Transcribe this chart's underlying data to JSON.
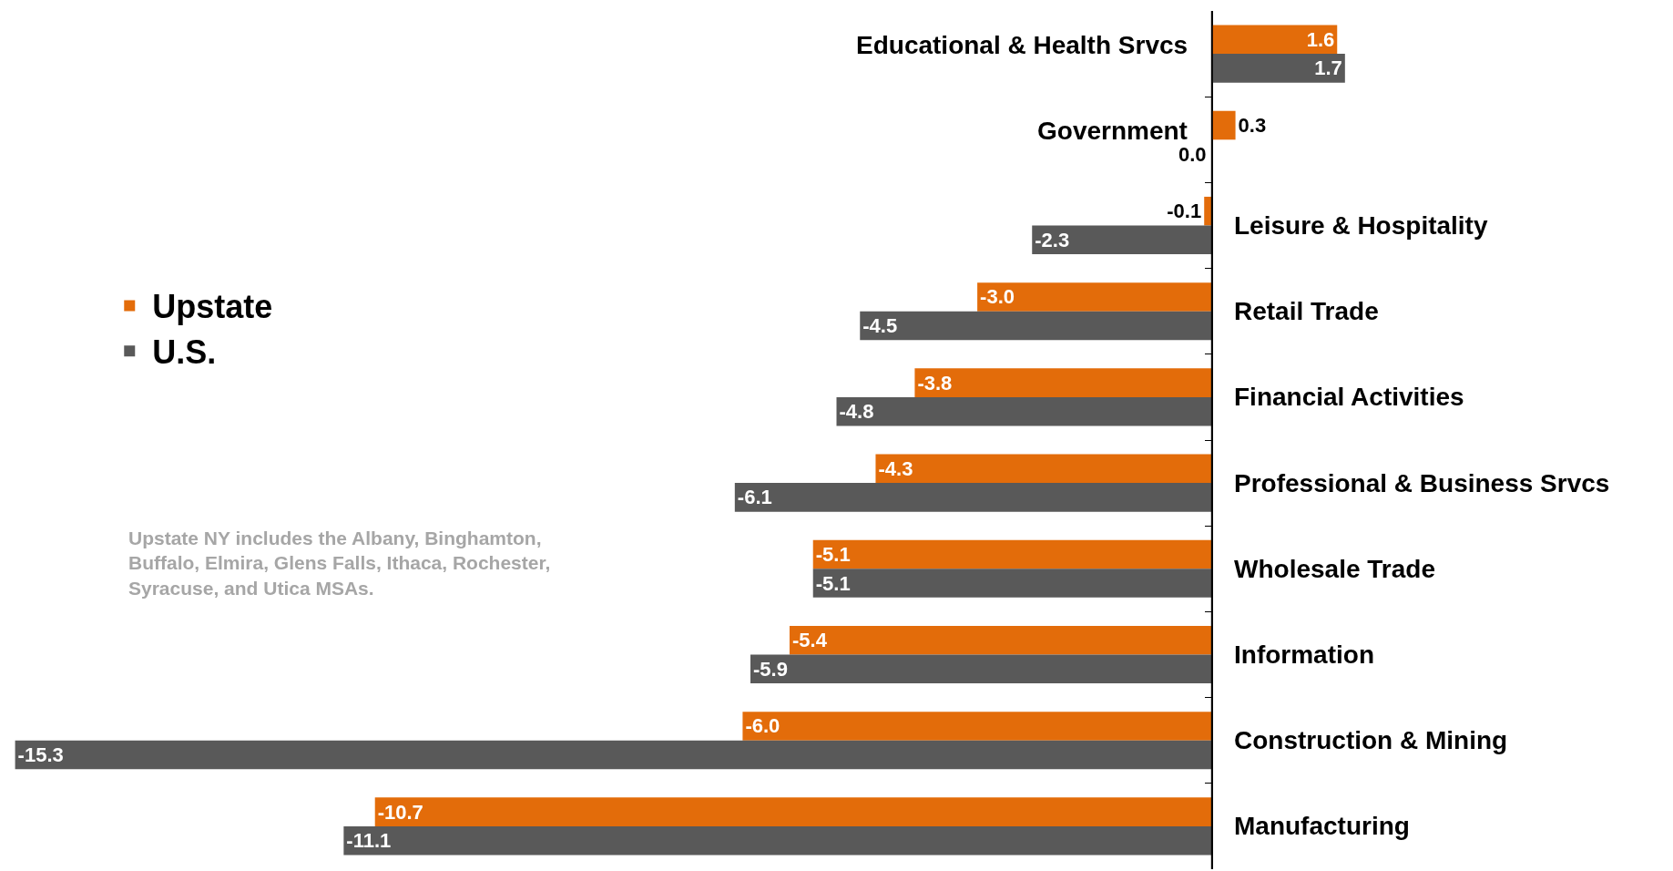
{
  "chart_data": {
    "type": "bar",
    "orientation": "horizontal",
    "categories": [
      "Educational & Health Srvcs",
      "Government",
      "Leisure & Hospitality",
      "Retail Trade",
      "Financial Activities",
      "Professional & Business Srvcs",
      "Wholesale Trade",
      "Information",
      "Construction & Mining",
      "Manufacturing"
    ],
    "series": [
      {
        "name": "Upstate",
        "color": "#e36c0a",
        "values": [
          1.6,
          0.3,
          -0.1,
          -3.0,
          -3.8,
          -4.3,
          -5.1,
          -5.4,
          -6.0,
          -10.7
        ],
        "value_labels": [
          "1.6",
          "0.3",
          "-0.1",
          "-3.0",
          "-3.8",
          "-4.3",
          "-5.1",
          "-5.4",
          "-6.0",
          "-10.7"
        ]
      },
      {
        "name": "U.S.",
        "color": "#595959",
        "values": [
          1.7,
          0.0,
          -2.3,
          -4.5,
          -4.8,
          -6.1,
          -5.1,
          -5.9,
          -15.3,
          -11.1
        ],
        "value_labels": [
          "1.7",
          "0.0",
          "-2.3",
          "-4.5",
          "-4.8",
          "-6.1",
          "-5.1",
          "-5.9",
          "-15.3",
          "-11.1"
        ]
      }
    ],
    "xlim": [
      -15.4,
      5.8
    ],
    "grid": false,
    "legend": "left",
    "annotations": [
      "Upstate NY includes the Albany, Binghamton,\nBuffalo, Elmira, Glens Falls, Ithaca, Rochester,\nSyracuse, and Utica MSAs."
    ]
  }
}
